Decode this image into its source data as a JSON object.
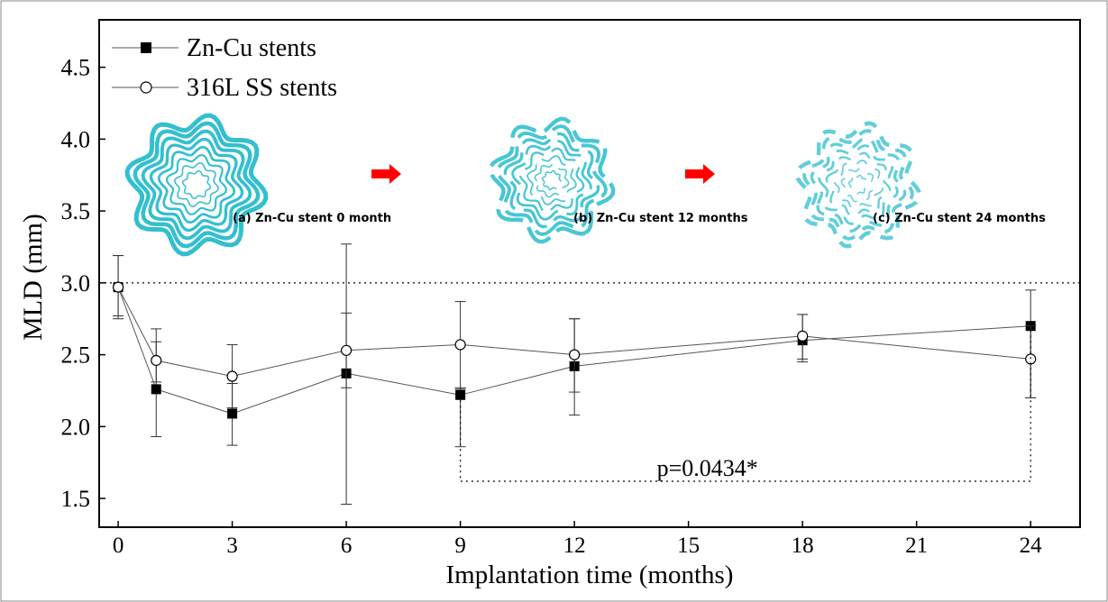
{
  "chart_data": {
    "type": "line",
    "xlabel": "Implantation time (months)",
    "ylabel": "MLD (mm)",
    "xlim": [
      -0.5,
      25.3
    ],
    "ylim": [
      1.3,
      4.83
    ],
    "xticks": [
      0,
      3,
      6,
      9,
      12,
      15,
      18,
      21,
      24
    ],
    "yticks": [
      1.5,
      2.0,
      2.5,
      3.0,
      3.5,
      4.0,
      4.5
    ],
    "ytick_labels": [
      "1.5",
      "2.0",
      "2.5",
      "3.0",
      "3.5",
      "4.0",
      "4.5"
    ],
    "grid": false,
    "legend_position": "top-left",
    "reference_line": {
      "y": 3.0,
      "style": "dotted"
    },
    "series": [
      {
        "name": "Zn-Cu stents",
        "marker": "filled-square",
        "x": [
          0,
          1,
          3,
          6,
          9,
          12,
          18,
          24
        ],
        "values": [
          2.97,
          2.26,
          2.09,
          2.37,
          2.22,
          2.42,
          2.6,
          2.7
        ],
        "error_low": [
          2.75,
          1.93,
          1.87,
          1.46,
          1.86,
          2.08,
          2.45,
          2.2
        ],
        "error_high": [
          3.19,
          2.59,
          2.3,
          3.27,
          2.27,
          2.75,
          2.78,
          2.95
        ]
      },
      {
        "name": "316L SS stents",
        "marker": "open-circle",
        "x": [
          0,
          1,
          3,
          6,
          9,
          12,
          18,
          24
        ],
        "values": [
          2.97,
          2.46,
          2.35,
          2.53,
          2.57,
          2.5,
          2.63,
          2.47
        ],
        "error_low": [
          2.77,
          2.31,
          2.13,
          2.27,
          2.26,
          2.24,
          2.47,
          2.2
        ],
        "error_high": [
          3.19,
          2.68,
          2.57,
          2.79,
          2.87,
          2.75,
          2.78,
          2.7
        ]
      }
    ],
    "annotations": [
      {
        "text": "p=0.0434*",
        "x": 15.5,
        "y": 1.72,
        "bracket": {
          "x_from": 9,
          "x_to": 24,
          "y": 1.62,
          "top_from": 2.22,
          "top_to": 2.7
        }
      }
    ],
    "insets": [
      {
        "label": "(a) Zn-Cu stent 0 month",
        "color": "#29bccc",
        "fade": 1.0
      },
      {
        "label": "(b) Zn-Cu stent 12 months",
        "color": "#29bccc",
        "fade": 0.75
      },
      {
        "label": "(c) Zn-Cu stent 24 months",
        "color": "#29bccc",
        "fade": 0.45
      }
    ],
    "arrow_color": "#ff0000"
  }
}
